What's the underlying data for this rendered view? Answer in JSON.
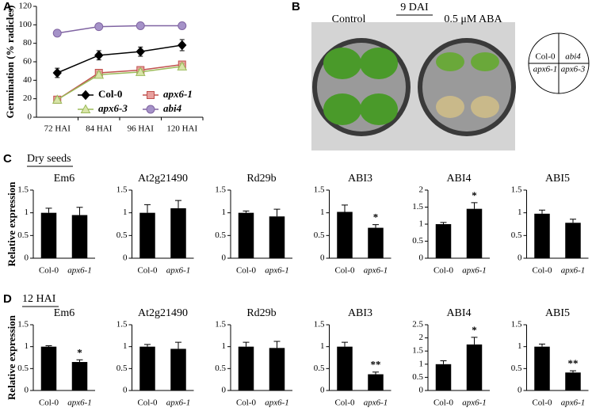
{
  "figure": {
    "panels": [
      "A",
      "B",
      "C",
      "D"
    ],
    "row_titles": [
      "Dry seeds",
      "12 HAI"
    ]
  },
  "photo": {
    "header": "9 DAI",
    "left_label": "Control",
    "right_label": "0.5 μM ABA",
    "genotype_key": [
      "Col-0",
      "abi4",
      "apx6-1",
      "apx6-3"
    ]
  },
  "chart_data": [
    {
      "type": "line",
      "ylabel": "Germination (% radicles)",
      "categories": [
        "72 HAI",
        "84 HAI",
        "96 HAI",
        "120 HAI"
      ],
      "ylim": [
        0,
        120
      ],
      "yticks": [
        0,
        20,
        40,
        60,
        80,
        100,
        120
      ],
      "series": [
        {
          "name": "Col-0",
          "color": "#000000",
          "marker": "diamond",
          "values": [
            48,
            67,
            71,
            78
          ],
          "errors": [
            5,
            5,
            5,
            6
          ]
        },
        {
          "name": "apx6-1",
          "color": "#c0504d",
          "marker": "square",
          "values": [
            19,
            48,
            51,
            57
          ],
          "errors": [
            2,
            3,
            3,
            3
          ]
        },
        {
          "name": "apx6-3",
          "color": "#9bbb59",
          "marker": "triangle",
          "values": [
            19,
            46,
            49,
            55
          ],
          "errors": [
            2,
            3,
            3,
            3
          ]
        },
        {
          "name": "abi4",
          "color": "#8064a2",
          "marker": "circle",
          "values": [
            91,
            98,
            99,
            99
          ],
          "errors": [
            3,
            1,
            1,
            1
          ]
        }
      ]
    },
    {
      "type": "bar",
      "title": "Em6",
      "ylabel": "Relative expression",
      "categories": [
        "Col-0",
        "apx6-1"
      ],
      "values": [
        1.0,
        0.95
      ],
      "errors": [
        0.1,
        0.17
      ],
      "significance": [
        null,
        null
      ],
      "ylim": [
        0,
        1.5
      ],
      "yticks": [
        0,
        0.5,
        1,
        1.5
      ]
    },
    {
      "type": "bar",
      "title": "At2g21490",
      "categories": [
        "Col-0",
        "apx6-1"
      ],
      "values": [
        1.0,
        1.1
      ],
      "errors": [
        0.18,
        0.17
      ],
      "significance": [
        null,
        null
      ],
      "ylim": [
        0,
        1.5
      ],
      "yticks": [
        0,
        0.5,
        1,
        1.5
      ]
    },
    {
      "type": "bar",
      "title": "Rd29b",
      "categories": [
        "Col-0",
        "apx6-1"
      ],
      "values": [
        1.0,
        0.92
      ],
      "errors": [
        0.04,
        0.16
      ],
      "significance": [
        null,
        null
      ],
      "ylim": [
        0,
        1.5
      ],
      "yticks": [
        0,
        0.5,
        1,
        1.5
      ]
    },
    {
      "type": "bar",
      "title": "ABI3",
      "categories": [
        "Col-0",
        "apx6-1"
      ],
      "values": [
        1.02,
        0.67
      ],
      "errors": [
        0.15,
        0.07
      ],
      "significance": [
        null,
        "*"
      ],
      "ylim": [
        0,
        1.5
      ],
      "yticks": [
        0,
        0.5,
        1,
        1.5
      ]
    },
    {
      "type": "bar",
      "title": "ABI4",
      "categories": [
        "Col-0",
        "apx6-1"
      ],
      "values": [
        1.0,
        1.45
      ],
      "errors": [
        0.05,
        0.18
      ],
      "significance": [
        null,
        "*"
      ],
      "ylim": [
        0,
        2
      ],
      "yticks": [
        0,
        0.5,
        1,
        1.5,
        2
      ]
    },
    {
      "type": "bar",
      "title": "ABI5",
      "categories": [
        "Col-0",
        "apx6-1"
      ],
      "values": [
        0.98,
        0.78
      ],
      "errors": [
        0.08,
        0.08
      ],
      "significance": [
        null,
        null
      ],
      "ylim": [
        0,
        1.5
      ],
      "yticks": [
        0,
        0.5,
        1,
        1.5
      ]
    },
    {
      "type": "bar",
      "title": "Em6",
      "ylabel": "Relative expression",
      "categories": [
        "Col-0",
        "apx6-1"
      ],
      "values": [
        1.0,
        0.65
      ],
      "errors": [
        0.02,
        0.05
      ],
      "significance": [
        null,
        "*"
      ],
      "ylim": [
        0,
        1.5
      ],
      "yticks": [
        0,
        0.5,
        1,
        1.5
      ]
    },
    {
      "type": "bar",
      "title": "At2g21490",
      "categories": [
        "Col-0",
        "apx6-1"
      ],
      "values": [
        1.0,
        0.95
      ],
      "errors": [
        0.05,
        0.15
      ],
      "significance": [
        null,
        null
      ],
      "ylim": [
        0,
        1.5
      ],
      "yticks": [
        0,
        0.5,
        1,
        1.5
      ]
    },
    {
      "type": "bar",
      "title": "Rd29b",
      "categories": [
        "Col-0",
        "apx6-1"
      ],
      "values": [
        1.0,
        0.97
      ],
      "errors": [
        0.1,
        0.15
      ],
      "significance": [
        null,
        null
      ],
      "ylim": [
        0,
        1.5
      ],
      "yticks": [
        0,
        0.5,
        1,
        1.5
      ]
    },
    {
      "type": "bar",
      "title": "ABI3",
      "categories": [
        "Col-0",
        "apx6-1"
      ],
      "values": [
        1.0,
        0.37
      ],
      "errors": [
        0.1,
        0.05
      ],
      "significance": [
        null,
        "**"
      ],
      "ylim": [
        0,
        1.5
      ],
      "yticks": [
        0,
        0.5,
        1,
        1.5
      ]
    },
    {
      "type": "bar",
      "title": "ABI4",
      "categories": [
        "Col-0",
        "apx6-1"
      ],
      "values": [
        1.0,
        1.75
      ],
      "errors": [
        0.13,
        0.27
      ],
      "significance": [
        null,
        "*"
      ],
      "ylim": [
        0,
        2.5
      ],
      "yticks": [
        0,
        0.5,
        1,
        1.5,
        2,
        2.5
      ]
    },
    {
      "type": "bar",
      "title": "ABI5",
      "categories": [
        "Col-0",
        "apx6-1"
      ],
      "values": [
        1.0,
        0.41
      ],
      "errors": [
        0.06,
        0.04
      ],
      "significance": [
        null,
        "**"
      ],
      "ylim": [
        0,
        1.5
      ],
      "yticks": [
        0,
        0.5,
        1,
        1.5
      ]
    }
  ]
}
